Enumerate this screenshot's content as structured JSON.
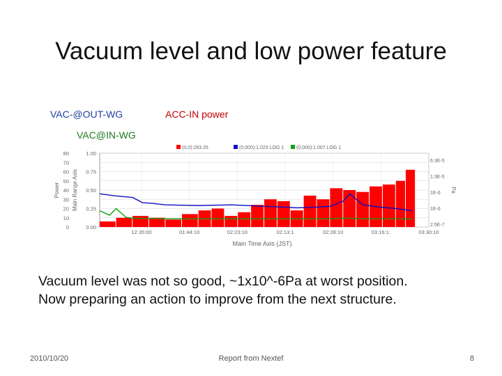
{
  "slide": {
    "title": "Vacuum level and low power feature",
    "body_line1": "Vacuum level was not so good, ~1x10^-6Pa at worst position.",
    "body_line2": "Now preparing an action to improve from the next structure.",
    "footer_date": "2010/10/20",
    "footer_source": "Report from Nextef",
    "page_number": "8"
  },
  "labels": {
    "vac_out": "VAC-@OUT-WG",
    "acc_in": "ACC-IN power",
    "vac_in": "VAC@IN-WG"
  },
  "colors": {
    "power": "#ff0000",
    "vac_out": "#1010c0",
    "vac_in": "#10a010",
    "axis_text": "#666666"
  },
  "chart_data": {
    "type": "line",
    "x_ticks": [
      "12:35:00",
      "01:44:10",
      "02:23:10",
      "02:13:1",
      "02:28:10",
      "03:16:1:",
      "03:30:10"
    ],
    "xlabel": "Main Time Axis (JST)",
    "y_left_outer": {
      "label": "Power",
      "ticks": [
        "80",
        "70",
        "60",
        "50",
        "40",
        "30",
        "20",
        "10",
        "0"
      ],
      "ylim": [
        0,
        80
      ]
    },
    "y_left_inner": {
      "label": "Main Range Axis",
      "ticks": [
        "1.00",
        "0.75",
        "0.50",
        "0.25",
        "0.00"
      ],
      "ylim": [
        0,
        1
      ]
    },
    "y_right": {
      "label": "Pa",
      "ticks": [
        "6.3E-5",
        "1.3E-5",
        "1E-6",
        "1E-6",
        "2.5E-7"
      ]
    },
    "legend": [
      "(0,0):283.25",
      "(0,000):1.023 LOG 1",
      "(0,000):1.007 LOG 1"
    ],
    "legend_position": "top",
    "series": [
      {
        "name": "(0,0):283.25",
        "x": [
          0.0,
          0.05,
          0.1,
          0.15,
          0.2,
          0.25,
          0.3,
          0.34,
          0.38,
          0.42,
          0.46,
          0.5,
          0.54,
          0.58,
          0.62,
          0.66,
          0.7,
          0.74,
          0.78,
          0.82,
          0.86,
          0.9,
          0.93,
          0.96
        ],
        "y": [
          6,
          10,
          12,
          10,
          8,
          14,
          18,
          20,
          12,
          16,
          24,
          30,
          28,
          18,
          34,
          30,
          42,
          40,
          38,
          44,
          46,
          50,
          62,
          6
        ]
      },
      {
        "name": "(0,000):1.023 LOG 1",
        "x": [
          0.0,
          0.05,
          0.1,
          0.13,
          0.16,
          0.2,
          0.3,
          0.4,
          0.5,
          0.56,
          0.6,
          0.66,
          0.7,
          0.74,
          0.76,
          0.8,
          0.85,
          0.9,
          0.95
        ],
        "y": [
          0.45,
          0.42,
          0.4,
          0.33,
          0.32,
          0.3,
          0.29,
          0.3,
          0.28,
          0.27,
          0.26,
          0.27,
          0.28,
          0.35,
          0.45,
          0.3,
          0.27,
          0.25,
          0.22
        ]
      },
      {
        "name": "(0,000):1.007 LOG 1",
        "x": [
          0.0,
          0.03,
          0.05,
          0.08,
          0.1,
          0.2,
          0.3,
          0.4,
          0.5,
          0.6,
          0.7,
          0.75,
          0.8,
          0.9,
          0.95
        ],
        "y": [
          0.22,
          0.16,
          0.25,
          0.13,
          0.12,
          0.11,
          0.11,
          0.11,
          0.11,
          0.11,
          0.11,
          0.12,
          0.11,
          0.11,
          0.11
        ]
      }
    ],
    "grid": true
  }
}
